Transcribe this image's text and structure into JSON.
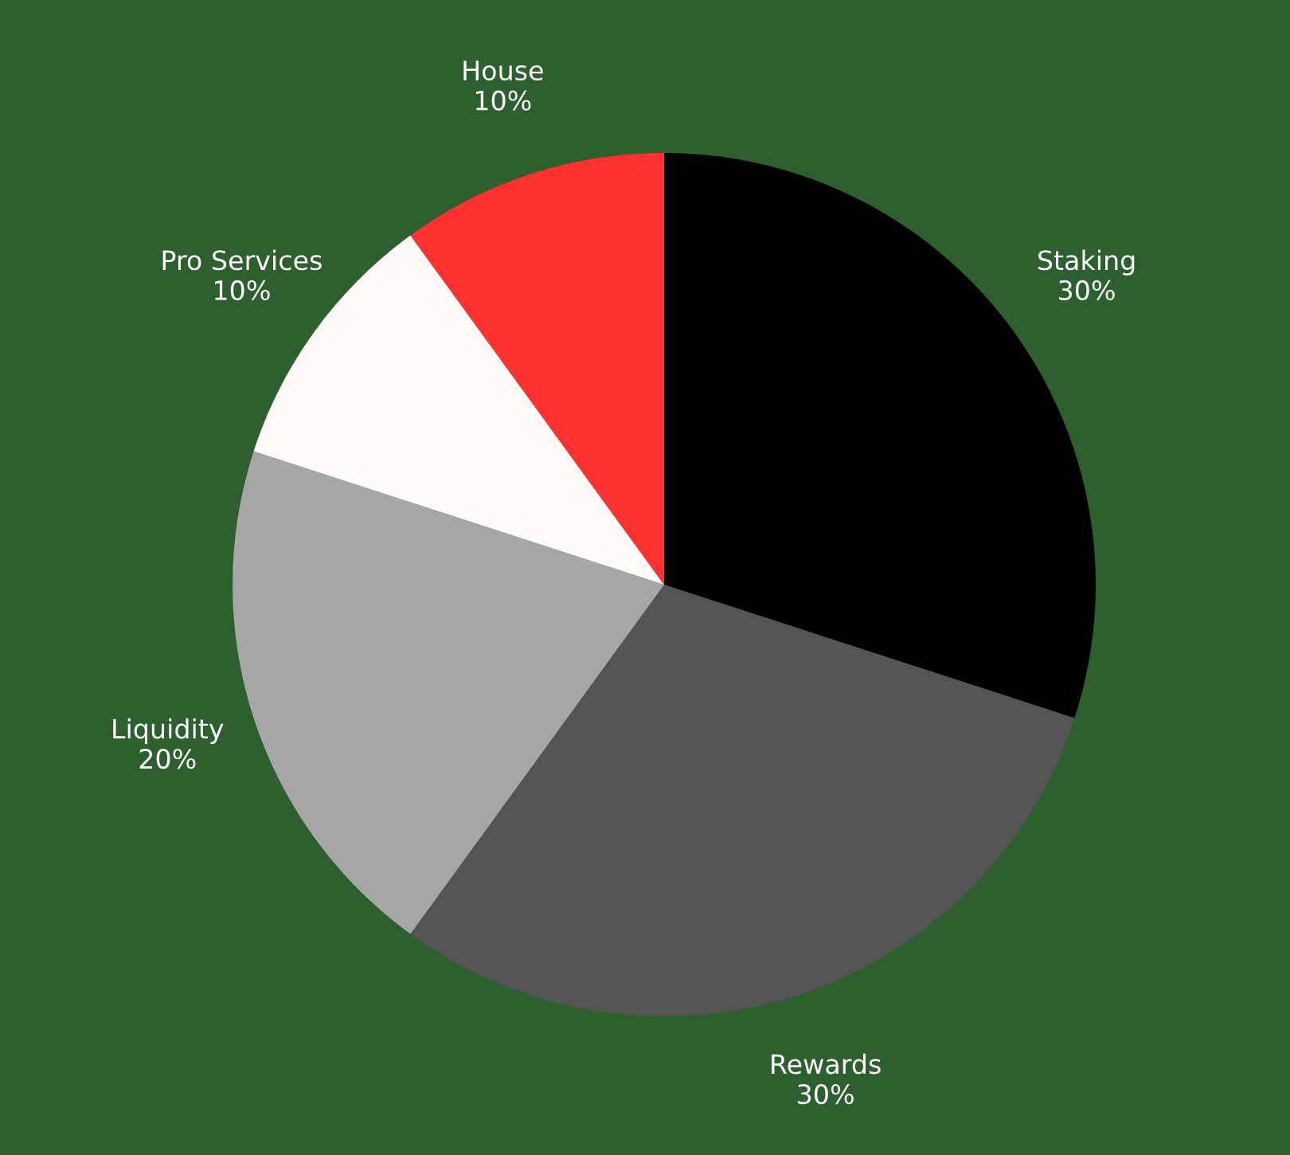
{
  "chart_data": {
    "type": "pie",
    "categories": [
      "Staking",
      "Rewards",
      "Liquidity",
      "Pro Services",
      "House"
    ],
    "values": [
      30,
      30,
      20,
      10,
      10
    ],
    "value_labels": [
      "30%",
      "30%",
      "20%",
      "10%",
      "10%"
    ],
    "colors": [
      "#000000",
      "#545454",
      "#a6a6a6",
      "#fffaf7",
      "#ff3131"
    ],
    "legend": false
  }
}
